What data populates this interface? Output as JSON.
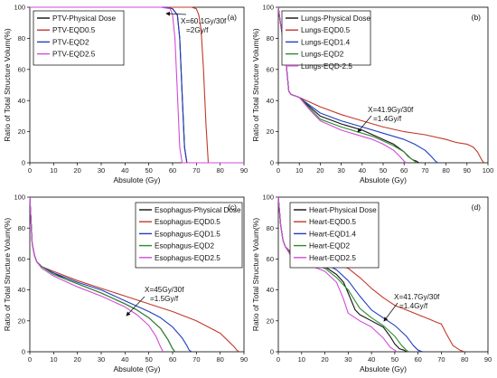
{
  "chart_data": [
    {
      "type": "line",
      "panel_label": "(a)",
      "xlabel": "Absulote (Gy)",
      "ylabel": "Ratio of Total Structure Volum(%)",
      "xlim": [
        0,
        90
      ],
      "ylim": [
        0,
        100
      ],
      "xticks": [
        0,
        10,
        20,
        30,
        40,
        50,
        60,
        70,
        80,
        90
      ],
      "yticks": [
        0,
        20,
        40,
        60,
        80,
        100
      ],
      "legend_position": "top-left",
      "annotation": [
        "X=60.1Gy/30f",
        "=2Gy/f"
      ],
      "series": [
        {
          "name": "PTV-Physical Dose",
          "color": "#111111",
          "x": [
            0,
            57,
            60,
            62,
            63,
            64,
            65,
            66,
            90
          ],
          "y": [
            100,
            100,
            99,
            95,
            80,
            45,
            10,
            0,
            0
          ]
        },
        {
          "name": "PTV-EQD0.5",
          "color": "#c0392b",
          "x": [
            0,
            68,
            70,
            71,
            72,
            73,
            74,
            75,
            90
          ],
          "y": [
            100,
            100,
            99,
            95,
            85,
            60,
            25,
            0,
            0
          ]
        },
        {
          "name": "PTV-EQD2",
          "color": "#1f3fbf",
          "x": [
            0,
            57,
            60,
            62,
            63,
            64,
            65,
            66,
            90
          ],
          "y": [
            100,
            100,
            99,
            95,
            80,
            45,
            10,
            0,
            0
          ]
        },
        {
          "name": "PTV-EQD2.5",
          "color": "#d24bd8",
          "x": [
            0,
            55,
            59,
            60,
            61,
            62,
            63,
            64,
            90
          ],
          "y": [
            100,
            100,
            99,
            95,
            80,
            45,
            10,
            0,
            0
          ]
        }
      ]
    },
    {
      "type": "line",
      "panel_label": "(b)",
      "xlabel": "Absulote (Gy)",
      "ylabel": "Ratio of Total Structure Volum(%)",
      "xlim": [
        0,
        100
      ],
      "ylim": [
        0,
        100
      ],
      "xticks": [
        0,
        10,
        20,
        30,
        40,
        50,
        60,
        70,
        80,
        90,
        100
      ],
      "yticks": [
        0,
        20,
        40,
        60,
        80,
        100
      ],
      "legend_position": "top-left",
      "annotation": [
        "X=41.9Gy/30f",
        "=1.4Gy/f"
      ],
      "series": [
        {
          "name": "Lungs-Physical Dose",
          "color": "#111111",
          "x": [
            0,
            1,
            2,
            3,
            4,
            5,
            6,
            8,
            10,
            15,
            20,
            30,
            40,
            45,
            50,
            55,
            60,
            62,
            64,
            66,
            67
          ],
          "y": [
            100,
            90,
            82,
            75,
            60,
            46,
            44,
            43,
            42,
            36,
            30,
            25,
            21,
            18,
            15,
            12,
            7,
            4,
            2,
            1,
            0
          ]
        },
        {
          "name": "Lungs-EQD0.5",
          "color": "#c0392b",
          "x": [
            0,
            1,
            2,
            3,
            4,
            5,
            6,
            8,
            10,
            15,
            20,
            30,
            40,
            50,
            60,
            70,
            80,
            85,
            90,
            93,
            95,
            97,
            98
          ],
          "y": [
            100,
            90,
            82,
            75,
            60,
            46,
            44,
            43,
            42,
            39,
            36,
            31,
            27,
            23,
            20,
            18,
            15,
            13,
            12,
            10,
            7,
            2,
            0
          ]
        },
        {
          "name": "Lungs-EQD1.4",
          "color": "#1f3fbf",
          "x": [
            0,
            1,
            2,
            3,
            4,
            5,
            6,
            8,
            10,
            15,
            20,
            30,
            40,
            50,
            60,
            65,
            70,
            73,
            75,
            76
          ],
          "y": [
            100,
            90,
            82,
            75,
            60,
            46,
            44,
            43,
            42,
            37,
            32,
            27,
            23,
            19,
            15,
            12,
            8,
            4,
            1,
            0
          ]
        },
        {
          "name": "Lungs-EQD2",
          "color": "#2e8b2e",
          "x": [
            0,
            1,
            2,
            3,
            4,
            5,
            6,
            8,
            10,
            15,
            20,
            30,
            40,
            45,
            50,
            55,
            60,
            63,
            65,
            66
          ],
          "y": [
            100,
            90,
            82,
            75,
            60,
            46,
            44,
            43,
            42,
            35,
            28,
            23,
            19,
            17,
            14,
            11,
            7,
            3,
            1,
            0
          ]
        },
        {
          "name": "Lungs-EQD-2.5",
          "color": "#d24bd8",
          "x": [
            0,
            1,
            2,
            3,
            4,
            5,
            6,
            8,
            10,
            15,
            20,
            30,
            40,
            45,
            50,
            55,
            58,
            60,
            61
          ],
          "y": [
            100,
            90,
            82,
            75,
            60,
            46,
            44,
            43,
            42,
            34,
            27,
            21,
            17,
            15,
            12,
            8,
            4,
            1,
            0
          ]
        }
      ]
    },
    {
      "type": "line",
      "panel_label": "(c)",
      "xlabel": "Absulote (Gy)",
      "ylabel": "Ratio of Total Structure Volum(%)",
      "xlim": [
        0,
        90
      ],
      "ylim": [
        0,
        100
      ],
      "xticks": [
        0,
        10,
        20,
        30,
        40,
        50,
        60,
        70,
        80,
        90
      ],
      "yticks": [
        0,
        20,
        40,
        60,
        80,
        100
      ],
      "legend_position": "top-right",
      "annotation": [
        "X=45Gy/30f",
        "=1.5Gy/f"
      ],
      "series": [
        {
          "name": "Esophagus-Physical Dose",
          "color": "#111111",
          "x": [
            0,
            1,
            2,
            3,
            5,
            10,
            15,
            20,
            30,
            40,
            45,
            50,
            55,
            58,
            60,
            61
          ],
          "y": [
            100,
            70,
            62,
            58,
            55,
            51,
            47,
            44,
            38,
            31,
            27,
            22,
            15,
            8,
            2,
            0
          ]
        },
        {
          "name": "Esophagus-EQD0.5",
          "color": "#c0392b",
          "x": [
            0,
            1,
            2,
            3,
            5,
            10,
            20,
            30,
            40,
            50,
            60,
            70,
            80,
            84,
            86,
            87,
            88
          ],
          "y": [
            100,
            70,
            62,
            58,
            55,
            52,
            46,
            41,
            36,
            31,
            26,
            20,
            12,
            6,
            3,
            1,
            0
          ]
        },
        {
          "name": "Esophagus-EQD1.5",
          "color": "#1f3fbf",
          "x": [
            0,
            1,
            2,
            3,
            5,
            10,
            20,
            30,
            40,
            50,
            55,
            60,
            64,
            66,
            67,
            68
          ],
          "y": [
            100,
            70,
            62,
            58,
            55,
            51,
            45,
            40,
            33,
            26,
            22,
            16,
            9,
            4,
            1,
            0
          ]
        },
        {
          "name": "Esophagus-EQD2",
          "color": "#2e8b2e",
          "x": [
            0,
            1,
            2,
            3,
            5,
            10,
            20,
            30,
            40,
            45,
            50,
            55,
            58,
            60,
            61
          ],
          "y": [
            100,
            70,
            62,
            58,
            55,
            50,
            44,
            38,
            31,
            27,
            22,
            15,
            8,
            2,
            0
          ]
        },
        {
          "name": "Esophagus-EQD2.5",
          "color": "#d24bd8",
          "x": [
            0,
            1,
            2,
            3,
            5,
            10,
            20,
            30,
            40,
            45,
            50,
            53,
            55,
            56
          ],
          "y": [
            100,
            70,
            62,
            58,
            54,
            49,
            42,
            36,
            29,
            24,
            17,
            10,
            3,
            0
          ]
        }
      ]
    },
    {
      "type": "line",
      "panel_label": "(d)",
      "xlabel": "Absulote (Gy)",
      "ylabel": "Ratio of Total Structure Volum(%)",
      "xlim": [
        0,
        90
      ],
      "ylim": [
        0,
        100
      ],
      "xticks": [
        0,
        10,
        20,
        30,
        40,
        50,
        60,
        70,
        80,
        90
      ],
      "yticks": [
        0,
        20,
        40,
        60,
        80,
        100
      ],
      "legend_position": "top-left",
      "annotation": [
        "X=41.7Gy/30f",
        "=1.4Gy/f"
      ],
      "series": [
        {
          "name": "Heart-Physical Dose",
          "color": "#111111",
          "x": [
            0,
            1,
            2,
            3,
            5,
            10,
            15,
            20,
            25,
            28,
            30,
            33,
            35,
            40,
            45,
            48,
            50,
            52,
            54,
            55
          ],
          "y": [
            100,
            82,
            72,
            68,
            64,
            60,
            58,
            55,
            50,
            45,
            38,
            27,
            24,
            20,
            16,
            10,
            5,
            2,
            1,
            0
          ]
        },
        {
          "name": "Heart-EQD0.5",
          "color": "#c0392b",
          "x": [
            0,
            1,
            2,
            3,
            5,
            10,
            20,
            25,
            30,
            35,
            40,
            45,
            50,
            55,
            60,
            65,
            68,
            70,
            72,
            75,
            78,
            80
          ],
          "y": [
            100,
            82,
            72,
            68,
            65,
            62,
            59,
            57,
            54,
            48,
            41,
            35,
            30,
            27,
            24,
            21,
            19,
            18,
            12,
            4,
            1,
            0
          ]
        },
        {
          "name": "Heart-EQD1.4",
          "color": "#1f3fbf",
          "x": [
            0,
            1,
            2,
            3,
            5,
            10,
            20,
            25,
            30,
            35,
            40,
            45,
            50,
            55,
            58,
            60,
            62
          ],
          "y": [
            100,
            82,
            72,
            68,
            64,
            61,
            57,
            53,
            46,
            36,
            27,
            22,
            17,
            10,
            4,
            1,
            0
          ]
        },
        {
          "name": "Heart-EQD2",
          "color": "#2e8b2e",
          "x": [
            0,
            1,
            2,
            3,
            5,
            10,
            15,
            20,
            25,
            30,
            35,
            40,
            45,
            50,
            53,
            55,
            56
          ],
          "y": [
            100,
            82,
            72,
            68,
            64,
            60,
            57,
            54,
            48,
            40,
            28,
            22,
            17,
            10,
            4,
            1,
            0
          ]
        },
        {
          "name": "Heart-EQD2.5",
          "color": "#d24bd8",
          "x": [
            0,
            1,
            2,
            3,
            5,
            10,
            15,
            20,
            25,
            28,
            30,
            35,
            40,
            45,
            48,
            50,
            51
          ],
          "y": [
            100,
            82,
            72,
            68,
            63,
            59,
            55,
            52,
            45,
            34,
            25,
            20,
            16,
            9,
            3,
            1,
            0
          ]
        }
      ]
    }
  ]
}
